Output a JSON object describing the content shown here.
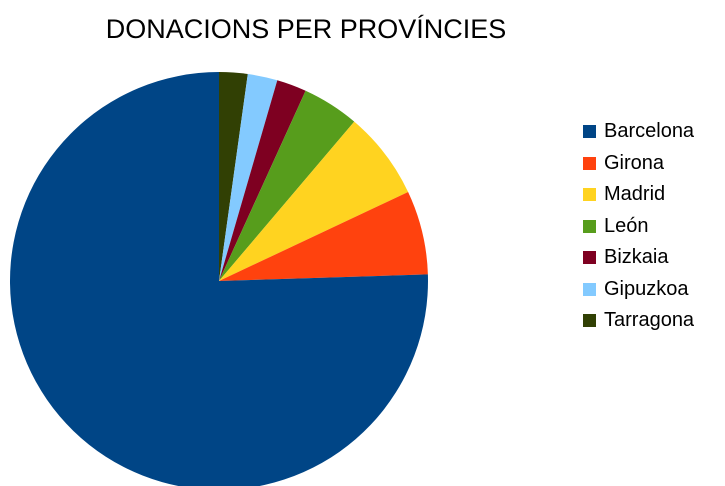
{
  "chart_data": {
    "type": "pie",
    "title": "DONACIONS PER PROVÍNCIES",
    "slices": [
      {
        "label": "Barcelona",
        "value": 75.5,
        "color": "#004586"
      },
      {
        "label": "Girona",
        "value": 6.5,
        "color": "#ff420e"
      },
      {
        "label": "Madrid",
        "value": 6.8,
        "color": "#ffd320"
      },
      {
        "label": "León",
        "value": 4.4,
        "color": "#579d1c"
      },
      {
        "label": "Bizkaia",
        "value": 2.3,
        "color": "#7e0021"
      },
      {
        "label": "Gipuzkoa",
        "value": 2.3,
        "color": "#83caff"
      },
      {
        "label": "Tarragona",
        "value": 2.2,
        "color": "#314004"
      }
    ],
    "legend_position": "right",
    "start_angle": "12 o'clock",
    "direction": "clockwise"
  }
}
